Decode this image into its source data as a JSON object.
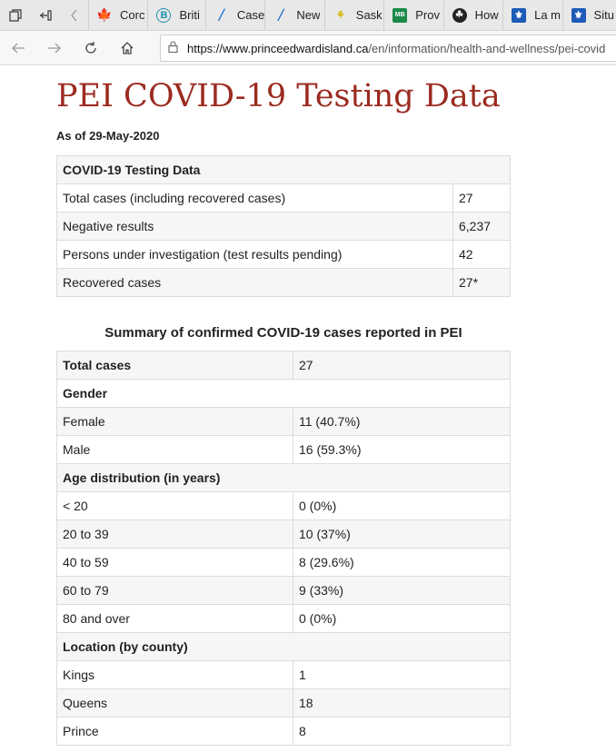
{
  "browser": {
    "tabs": [
      {
        "label": "Corc",
        "icon": "maple-leaf-icon",
        "color": "#d52b1e"
      },
      {
        "label": "Briti",
        "icon": "bc-shield-icon",
        "color": "#1f8fb0"
      },
      {
        "label": "Case",
        "icon": "alberta-icon",
        "color": "#1f6fd0"
      },
      {
        "label": "New",
        "icon": "alberta-icon",
        "color": "#1f6fd0"
      },
      {
        "label": "Sask",
        "icon": "wheat-icon",
        "color": "#d4b400"
      },
      {
        "label": "Prov",
        "icon": "manitoba-icon",
        "color": "#1d8a4a"
      },
      {
        "label": "How",
        "icon": "ontario-trillium-icon",
        "color": "#222222"
      },
      {
        "label": "La m",
        "icon": "quebec-fleur-de-lis-icon",
        "color": "#1e5bb8"
      },
      {
        "label": "Situ",
        "icon": "quebec-fleur-de-lis-icon",
        "color": "#1e5bb8"
      }
    ],
    "url_host": "https://www.princeedwardisland.ca",
    "url_path": "/en/information/health-and-wellness/pei-covid"
  },
  "page": {
    "title": "PEI COVID-19 Testing Data",
    "as_of": "As of 29-May-2020"
  },
  "testing_table": {
    "header": "COVID-19 Testing Data",
    "rows": [
      {
        "label": "Total cases (including recovered cases)",
        "value": "27"
      },
      {
        "label": "Negative results",
        "value": "6,237"
      },
      {
        "label": "Persons under investigation (test results pending)",
        "value": "42"
      },
      {
        "label": "Recovered cases",
        "value": "27*"
      }
    ]
  },
  "summary": {
    "caption": "Summary of confirmed COVID-19 cases reported in PEI",
    "total_label": "Total cases",
    "total_value": "27",
    "gender_heading": "Gender",
    "gender": [
      {
        "label": "Female",
        "value": "11 (40.7%)"
      },
      {
        "label": "Male",
        "value": "16 (59.3%)"
      }
    ],
    "age_heading": "Age distribution (in years)",
    "age": [
      {
        "label": "< 20",
        "value": "0 (0%)"
      },
      {
        "label": "20 to 39",
        "value": "10 (37%)"
      },
      {
        "label": "40 to 59",
        "value": "8 (29.6%)"
      },
      {
        "label": "60 to 79",
        "value": "9 (33%)"
      },
      {
        "label": "80 and over",
        "value": "0 (0%)"
      }
    ],
    "location_heading": "Location (by county)",
    "location": [
      {
        "label": "Kings",
        "value": "1"
      },
      {
        "label": "Queens",
        "value": "18"
      },
      {
        "label": "Prince",
        "value": "8"
      }
    ]
  }
}
